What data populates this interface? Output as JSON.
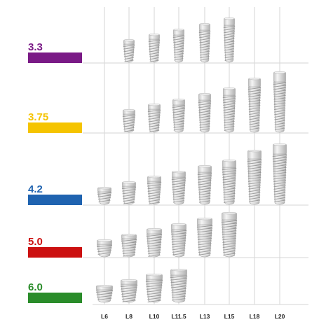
{
  "columns": [
    "L6",
    "L8",
    "L10",
    "L11.5",
    "L13",
    "L15",
    "L18",
    "L20"
  ],
  "rows": [
    {
      "label": "3.3",
      "color": "#7a1a86",
      "lengths": [
        "L8",
        "L10",
        "L11.5",
        "L13",
        "L15"
      ]
    },
    {
      "label": "3.75",
      "color": "#f5c400",
      "lengths": [
        "L8",
        "L10",
        "L11.5",
        "L13",
        "L15",
        "L18",
        "L20"
      ]
    },
    {
      "label": "4.2",
      "color": "#1f63b0",
      "lengths": [
        "L6",
        "L8",
        "L10",
        "L11.5",
        "L13",
        "L15",
        "L18",
        "L20"
      ]
    },
    {
      "label": "5.0",
      "color": "#cc1010",
      "lengths": [
        "L6",
        "L8",
        "L10",
        "L11.5",
        "L13",
        "L15"
      ]
    },
    {
      "label": "6.0",
      "color": "#2a8c2a",
      "lengths": [
        "L6",
        "L8",
        "L10",
        "L11.5"
      ]
    }
  ],
  "colors": {
    "grid": "#d6d6d6",
    "implant_light": "#e4e4e4",
    "implant_dark": "#a9a9a9"
  },
  "icon": "dental-implant-icon"
}
